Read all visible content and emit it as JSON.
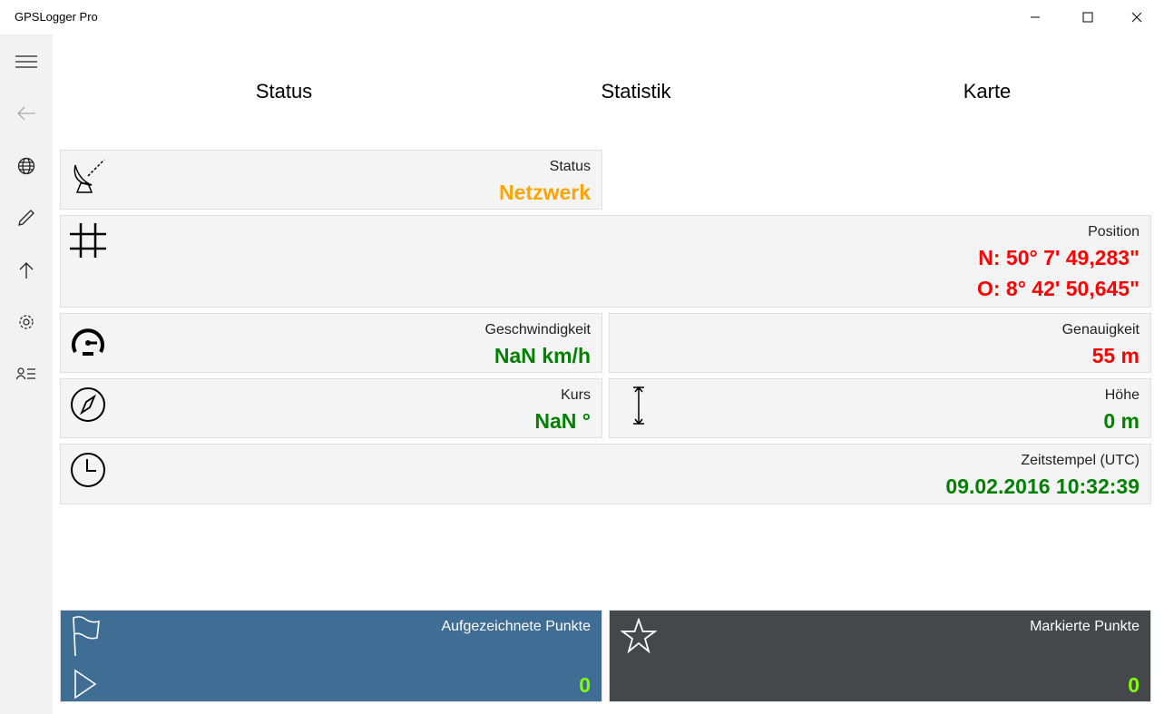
{
  "app": {
    "title": "GPSLogger Pro"
  },
  "sidebar": {
    "items": [
      {
        "icon": "hamburger-icon"
      },
      {
        "icon": "back-arrow-icon"
      },
      {
        "icon": "globe-icon"
      },
      {
        "icon": "pencil-icon"
      },
      {
        "icon": "upload-arrow-icon"
      },
      {
        "icon": "gear-icon"
      },
      {
        "icon": "contact-list-icon"
      }
    ]
  },
  "tabs": [
    {
      "label": "Status"
    },
    {
      "label": "Statistik"
    },
    {
      "label": "Karte"
    }
  ],
  "cards": {
    "status": {
      "label": "Status",
      "value": "Netzwerk",
      "color": "#ffa500"
    },
    "position": {
      "label": "Position",
      "lat": "N:  50° 7' 49,283\"",
      "lon": "O:  8° 42' 50,645\"",
      "color": "#ff0000"
    },
    "speed": {
      "label": "Geschwindigkeit",
      "value": "NaN km/h",
      "color": "#008000"
    },
    "accuracy": {
      "label": "Genauigkeit",
      "value": "55 m",
      "color": "#ff0000"
    },
    "course": {
      "label": "Kurs",
      "value": "NaN °",
      "color": "#008000"
    },
    "altitude": {
      "label": "Höhe",
      "value": "0 m",
      "color": "#008000"
    },
    "timestamp": {
      "label": "Zeitstempel (UTC)",
      "value": "09.02.2016 10:32:39",
      "color": "#008000"
    }
  },
  "bottom": {
    "recorded": {
      "label": "Aufgezeichnete Punkte",
      "value": "0",
      "bg": "#406d94"
    },
    "marked": {
      "label": "Markierte Punkte",
      "value": "0",
      "bg": "#46474b"
    }
  }
}
